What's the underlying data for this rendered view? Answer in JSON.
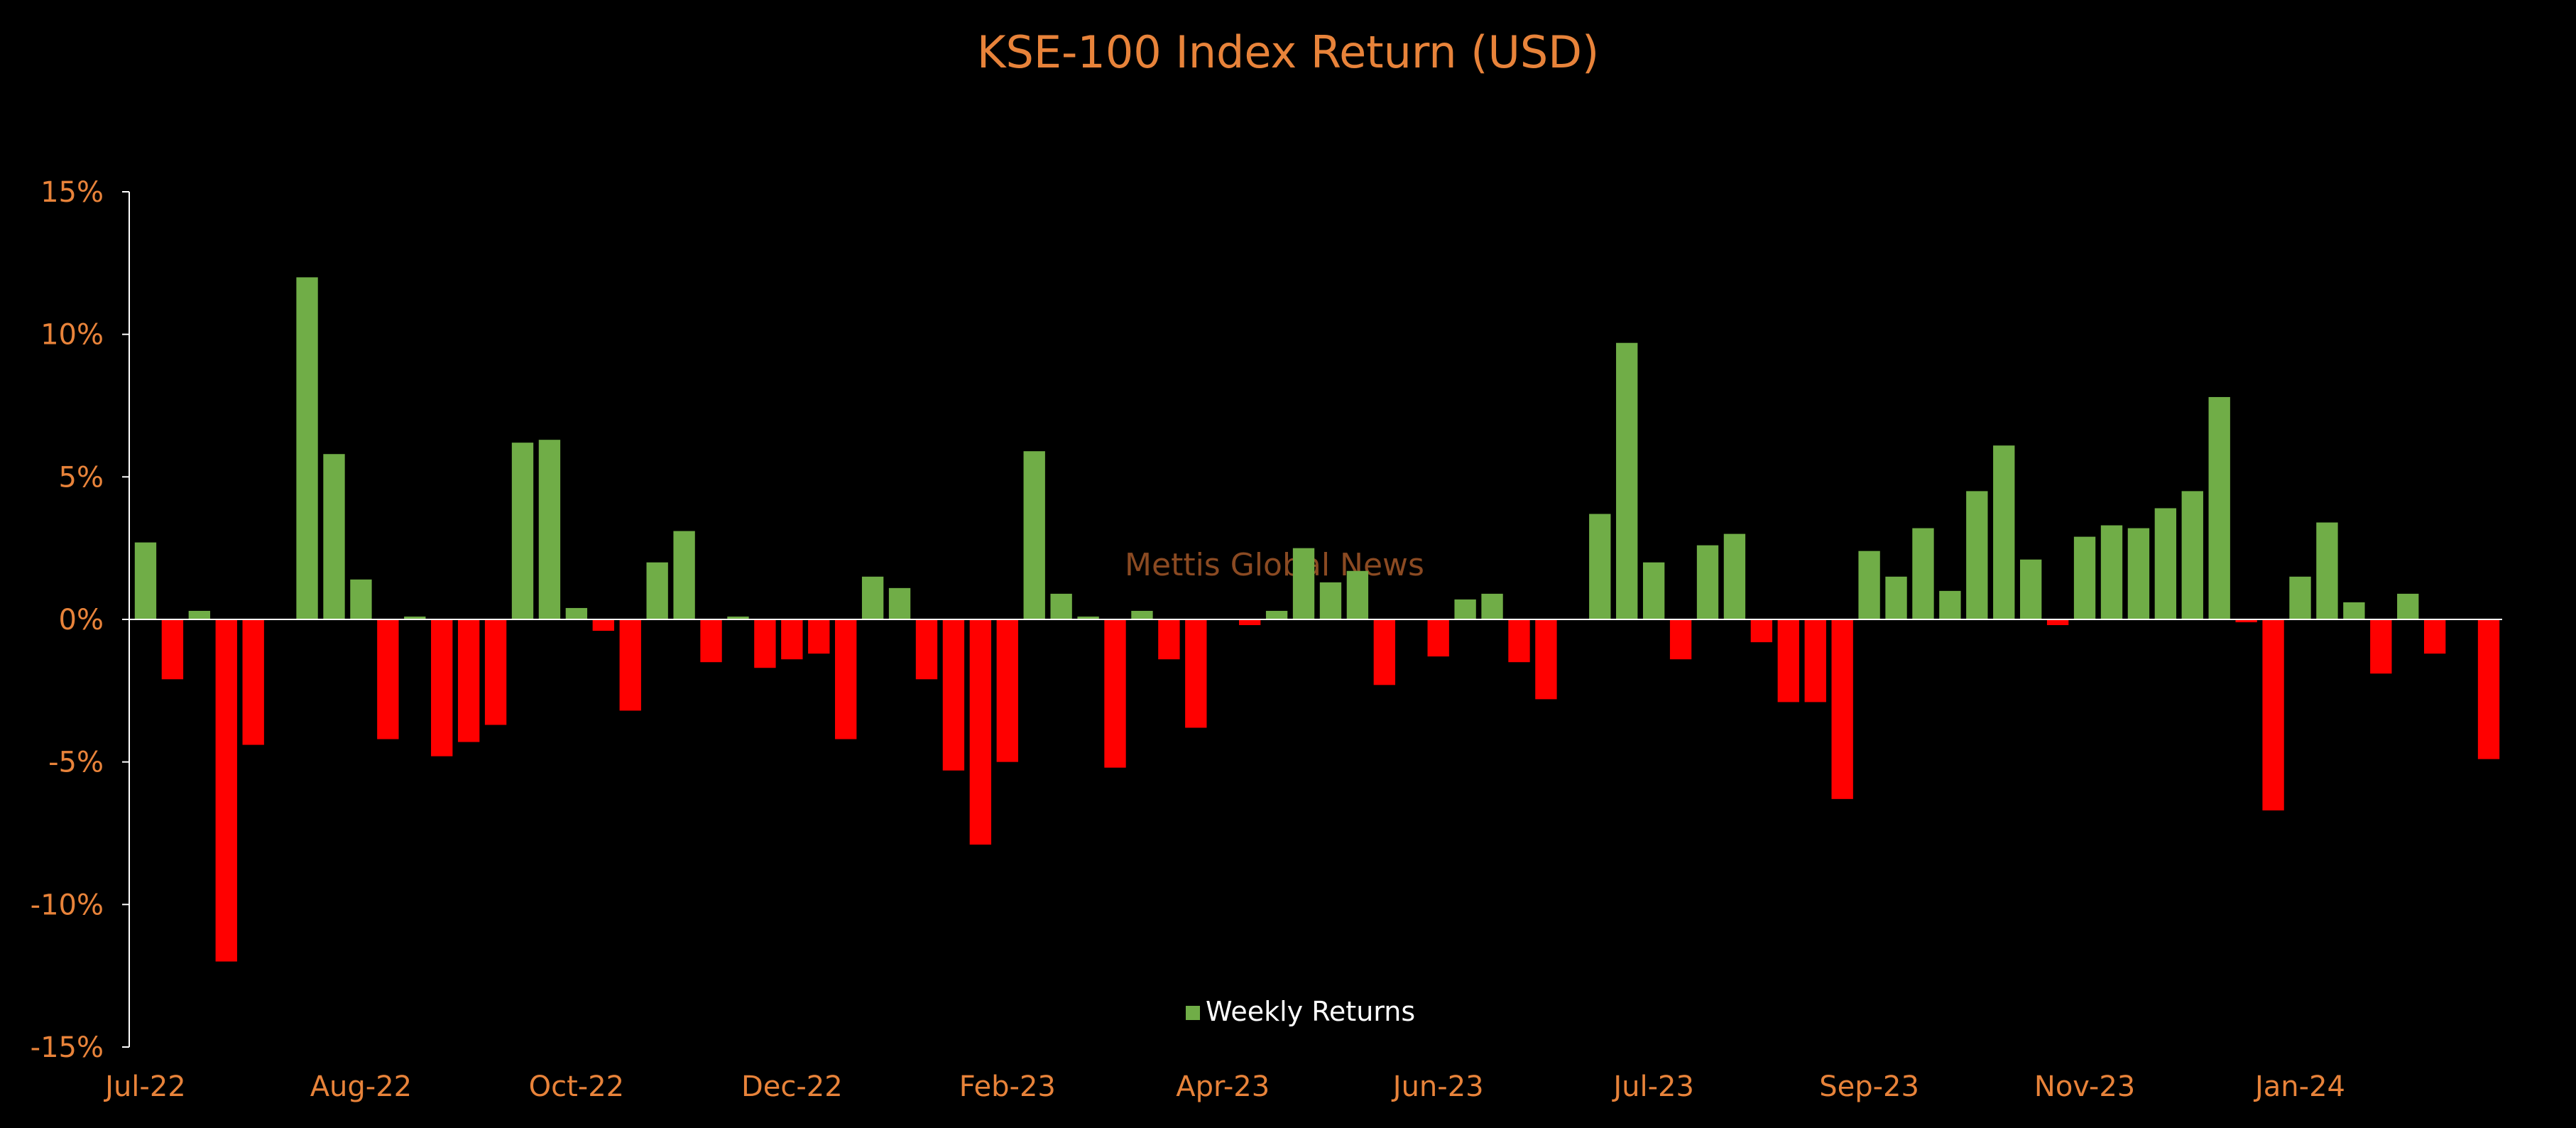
{
  "colors": {
    "background": "#000000",
    "title": "#E8833A",
    "tick_label": "#E8833A",
    "axis_line": "#FFFFFF",
    "positive_bar": "#70AD47",
    "negative_bar": "#FF0000",
    "watermark": "#8B4A22",
    "legend_text": "#FFFFFF"
  },
  "watermark": "Mettis Global News",
  "chart_data": {
    "type": "bar",
    "title": "KSE-100 Index Return (USD)",
    "xlabel": "",
    "ylabel": "",
    "ylim": [
      -15,
      15
    ],
    "yticks": [
      15,
      10,
      5,
      0,
      -5,
      -10,
      -15
    ],
    "ytick_labels": [
      "15%",
      "10%",
      "5%",
      "0%",
      "-5%",
      "-10%",
      "-15%"
    ],
    "xtick_labels": [
      "Jul-22",
      "Aug-22",
      "Oct-22",
      "Dec-22",
      "Feb-23",
      "Apr-23",
      "Jun-23",
      "Jul-23",
      "Sep-23",
      "Nov-23",
      "Jan-24"
    ],
    "xtick_positions": [
      0,
      8,
      16,
      24,
      32,
      40,
      48,
      56,
      64,
      72,
      80
    ],
    "legend": {
      "label": "Weekly Returns",
      "position": "bottom-center"
    },
    "grid": false,
    "series": [
      {
        "name": "Weekly Returns",
        "values": [
          2.7,
          -2.1,
          0.3,
          -12.0,
          -4.4,
          0,
          12.0,
          5.8,
          1.4,
          -4.2,
          0.1,
          -4.8,
          -4.3,
          -3.7,
          6.2,
          6.3,
          0.4,
          -0.4,
          -3.2,
          2.0,
          3.1,
          -1.5,
          0.1,
          -1.7,
          -1.4,
          -1.2,
          -4.2,
          1.5,
          1.1,
          -2.1,
          -5.3,
          -7.9,
          -5.0,
          5.9,
          0.9,
          0.1,
          -5.2,
          0.3,
          -1.4,
          -3.8,
          0,
          -0.2,
          0.3,
          2.5,
          1.3,
          1.7,
          -2.3,
          0,
          -1.3,
          0.7,
          0.9,
          -1.5,
          -2.8,
          0,
          3.7,
          9.7,
          2.0,
          -1.4,
          2.6,
          3.0,
          -0.8,
          -2.9,
          -2.9,
          -6.3,
          2.4,
          1.5,
          3.2,
          1.0,
          4.5,
          6.1,
          2.1,
          -0.2,
          2.9,
          3.3,
          3.2,
          3.9,
          4.5,
          7.8,
          -0.1,
          -6.7,
          1.5,
          3.4,
          0.6,
          -1.9,
          0.9,
          -1.2,
          0,
          -4.9
        ]
      }
    ]
  }
}
